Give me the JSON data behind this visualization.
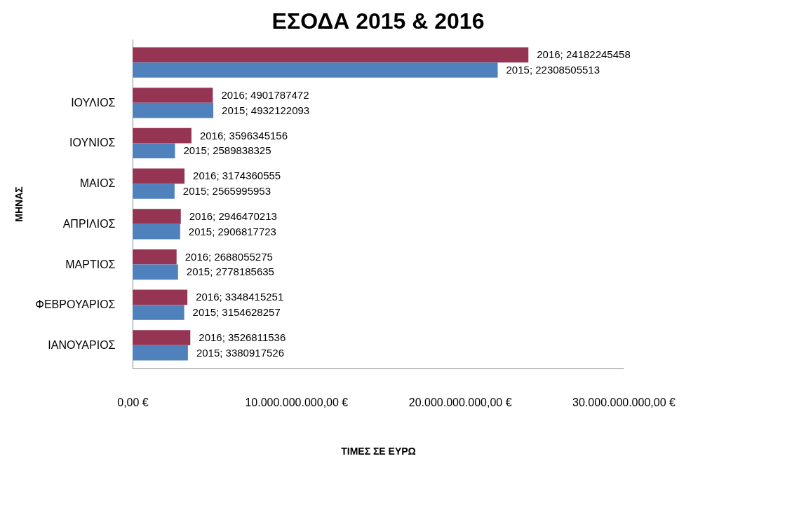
{
  "chart_data": {
    "type": "bar",
    "orientation": "horizontal",
    "title": "ΕΣΟΔΑ 2015 & 2016",
    "xlabel": "ΤΙΜΕΣ ΣΕ ΕΥΡΩ",
    "ylabel": "ΜΗΝΑΣ",
    "categories": [
      null,
      "ΙΟΥΛΙΟΣ",
      "ΙΟΥΝΙΟΣ",
      "ΜΑΙΟΣ",
      "ΑΠΡΙΛΙΟΣ",
      "ΜΑΡΤΙΟΣ",
      "ΦΕΒΡΟΥΑΡΙΟΣ",
      "ΙΑΝΟΥΑΡΙΟΣ"
    ],
    "series": [
      {
        "color": "#953553",
        "values": [
          24182245458,
          4901787472,
          3596345156,
          3174360555,
          2946470213,
          2688055275,
          3348415251,
          3526811536
        ],
        "value_labels": [
          "2016; 24182245458",
          "2016; 4901787472",
          "2016; 3596345156",
          "2016; 3174360555",
          "2016; 2946470213",
          "2016; 2688055275",
          "2016; 3348415251",
          "2016; 3526811536"
        ]
      },
      {
        "color": "#4f81bd",
        "values": [
          22308505513,
          4932122093,
          2589838325,
          2565995953,
          2906817723,
          2778185635,
          3154628257,
          3380917526
        ],
        "value_labels": [
          "2015; 22308505513",
          "2015; 4932122093",
          "2015; 2589838325",
          "2015; 2565995953",
          "2015; 2906817723",
          "2015; 2778185635",
          "2015; 3154628257",
          "2015; 3380917526"
        ]
      }
    ],
    "xlim": [
      0,
      30000000000
    ],
    "xticks": [
      {
        "value": 0,
        "label": "0,00 €"
      },
      {
        "value": 10000000000,
        "label": "10.000.000.000,00 €"
      },
      {
        "value": 20000000000,
        "label": "20.000.000.000,00 €"
      },
      {
        "value": 30000000000,
        "label": "30.000.000.000,00 €"
      }
    ],
    "grid": false,
    "legend": false
  }
}
